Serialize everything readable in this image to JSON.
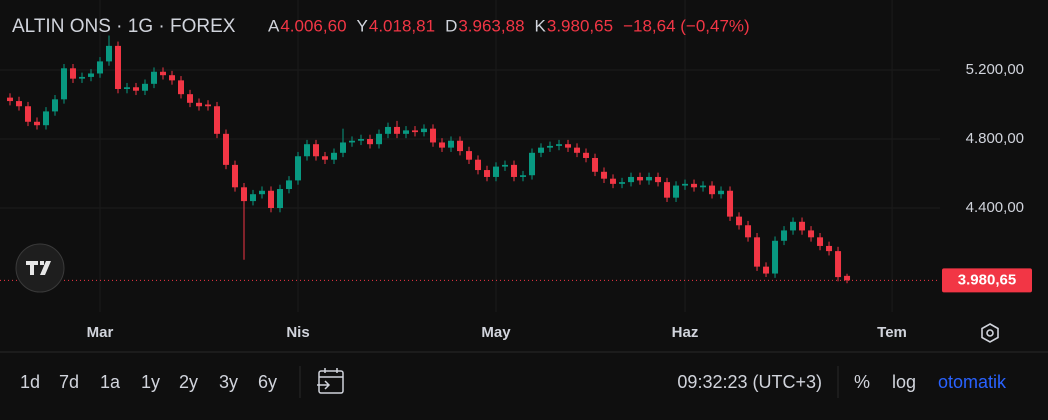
{
  "chart_data": {
    "type": "candlestick",
    "title": "ALTIN ONS · 1G · FOREX",
    "ohlc_legend": {
      "labels": [
        "A",
        "Y",
        "D",
        "K"
      ],
      "values": [
        "4.006,60",
        "4.018,81",
        "3.963,88",
        "3.980,65"
      ],
      "change": "−18,64 (−0,47%)"
    },
    "up_color": "#089981",
    "down_color": "#f23645",
    "candles": [
      [
        5040,
        5065,
        4995,
        5020
      ],
      [
        5020,
        5045,
        4965,
        4990
      ],
      [
        4990,
        5015,
        4875,
        4900
      ],
      [
        4900,
        4925,
        4855,
        4880
      ],
      [
        4880,
        4985,
        4855,
        4960
      ],
      [
        4960,
        5055,
        4935,
        5030
      ],
      [
        5030,
        5235,
        5005,
        5210
      ],
      [
        5210,
        5235,
        5125,
        5150
      ],
      [
        5150,
        5185,
        5125,
        5160
      ],
      [
        5160,
        5205,
        5135,
        5180
      ],
      [
        5180,
        5275,
        5155,
        5250
      ],
      [
        5250,
        5400,
        5225,
        5340
      ],
      [
        5340,
        5365,
        5065,
        5090
      ],
      [
        5090,
        5125,
        5065,
        5100
      ],
      [
        5100,
        5125,
        5055,
        5080
      ],
      [
        5080,
        5145,
        5055,
        5120
      ],
      [
        5120,
        5215,
        5095,
        5190
      ],
      [
        5190,
        5215,
        5145,
        5170
      ],
      [
        5170,
        5195,
        5115,
        5140
      ],
      [
        5140,
        5165,
        5035,
        5060
      ],
      [
        5060,
        5085,
        4985,
        5010
      ],
      [
        5010,
        5035,
        4965,
        4990
      ],
      [
        5000,
        5025,
        4965,
        4990
      ],
      [
        4990,
        5015,
        4805,
        4830
      ],
      [
        4830,
        4855,
        4625,
        4650
      ],
      [
        4650,
        4675,
        4495,
        4520
      ],
      [
        4520,
        4545,
        4100,
        4440
      ],
      [
        4440,
        4505,
        4415,
        4480
      ],
      [
        4480,
        4525,
        4455,
        4500
      ],
      [
        4500,
        4525,
        4375,
        4400
      ],
      [
        4400,
        4535,
        4375,
        4510
      ],
      [
        4510,
        4585,
        4485,
        4560
      ],
      [
        4560,
        4725,
        4535,
        4700
      ],
      [
        4700,
        4795,
        4675,
        4770
      ],
      [
        4770,
        4795,
        4675,
        4700
      ],
      [
        4700,
        4725,
        4655,
        4680
      ],
      [
        4680,
        4745,
        4655,
        4720
      ],
      [
        4720,
        4860,
        4695,
        4780
      ],
      [
        4780,
        4815,
        4755,
        4790
      ],
      [
        4790,
        4825,
        4765,
        4800
      ],
      [
        4800,
        4825,
        4745,
        4770
      ],
      [
        4770,
        4855,
        4745,
        4830
      ],
      [
        4830,
        4895,
        4805,
        4870
      ],
      [
        4870,
        4905,
        4805,
        4830
      ],
      [
        4830,
        4875,
        4805,
        4850
      ],
      [
        4850,
        4875,
        4815,
        4840
      ],
      [
        4840,
        4885,
        4815,
        4860
      ],
      [
        4860,
        4885,
        4755,
        4780
      ],
      [
        4780,
        4805,
        4725,
        4750
      ],
      [
        4750,
        4815,
        4725,
        4790
      ],
      [
        4790,
        4815,
        4705,
        4730
      ],
      [
        4730,
        4755,
        4655,
        4680
      ],
      [
        4680,
        4705,
        4595,
        4620
      ],
      [
        4620,
        4645,
        4555,
        4580
      ],
      [
        4580,
        4665,
        4555,
        4640
      ],
      [
        4640,
        4675,
        4615,
        4650
      ],
      [
        4650,
        4675,
        4555,
        4580
      ],
      [
        4580,
        4615,
        4555,
        4590
      ],
      [
        4590,
        4745,
        4565,
        4720
      ],
      [
        4720,
        4775,
        4695,
        4750
      ],
      [
        4750,
        4785,
        4725,
        4760
      ],
      [
        4760,
        4795,
        4735,
        4770
      ],
      [
        4770,
        4795,
        4725,
        4750
      ],
      [
        4750,
        4775,
        4695,
        4720
      ],
      [
        4720,
        4745,
        4665,
        4690
      ],
      [
        4690,
        4715,
        4585,
        4610
      ],
      [
        4610,
        4635,
        4545,
        4570
      ],
      [
        4570,
        4595,
        4515,
        4540
      ],
      [
        4540,
        4575,
        4515,
        4550
      ],
      [
        4550,
        4605,
        4525,
        4580
      ],
      [
        4580,
        4605,
        4535,
        4560
      ],
      [
        4560,
        4605,
        4535,
        4580
      ],
      [
        4580,
        4605,
        4525,
        4550
      ],
      [
        4550,
        4575,
        4435,
        4460
      ],
      [
        4460,
        4555,
        4435,
        4530
      ],
      [
        4530,
        4565,
        4505,
        4540
      ],
      [
        4540,
        4565,
        4495,
        4520
      ],
      [
        4520,
        4555,
        4495,
        4530
      ],
      [
        4530,
        4555,
        4455,
        4480
      ],
      [
        4480,
        4525,
        4455,
        4500
      ],
      [
        4500,
        4525,
        4325,
        4350
      ],
      [
        4350,
        4375,
        4275,
        4300
      ],
      [
        4300,
        4325,
        4205,
        4230
      ],
      [
        4230,
        4255,
        4035,
        4060
      ],
      [
        4060,
        4085,
        4000,
        4020
      ],
      [
        4020,
        4235,
        3995,
        4210
      ],
      [
        4210,
        4295,
        4185,
        4270
      ],
      [
        4270,
        4345,
        4245,
        4320
      ],
      [
        4320,
        4345,
        4245,
        4270
      ],
      [
        4270,
        4295,
        4205,
        4230
      ],
      [
        4230,
        4255,
        4155,
        4180
      ],
      [
        4180,
        4205,
        4125,
        4150
      ],
      [
        4150,
        4175,
        3975,
        3999.29
      ],
      [
        4006.6,
        4018.81,
        3963.88,
        3980.65
      ]
    ],
    "ylim": [
      3797,
      5606
    ],
    "yticks": [
      {
        "value": 5200,
        "label": "5.200,00"
      },
      {
        "value": 4800,
        "label": "4.800,00"
      },
      {
        "value": 4400,
        "label": "4.400,00"
      }
    ],
    "xlim": [
      -1.11,
      103.33
    ],
    "xticks": [
      {
        "value": 10,
        "label": "Mar"
      },
      {
        "value": 32,
        "label": "Nis"
      },
      {
        "value": 54,
        "label": "May"
      },
      {
        "value": 75,
        "label": "Haz"
      },
      {
        "value": 98,
        "label": "Tem"
      }
    ],
    "last_price": {
      "value": 3980.65,
      "label": "3.980,65"
    },
    "grid": true
  },
  "toolbar": {
    "ranges": [
      "1d",
      "7d",
      "1a",
      "1y",
      "2y",
      "3y",
      "6y"
    ],
    "clock": "09:32:23 (UTC+3)",
    "percent": "%",
    "log": "log",
    "auto": "otomatik"
  }
}
